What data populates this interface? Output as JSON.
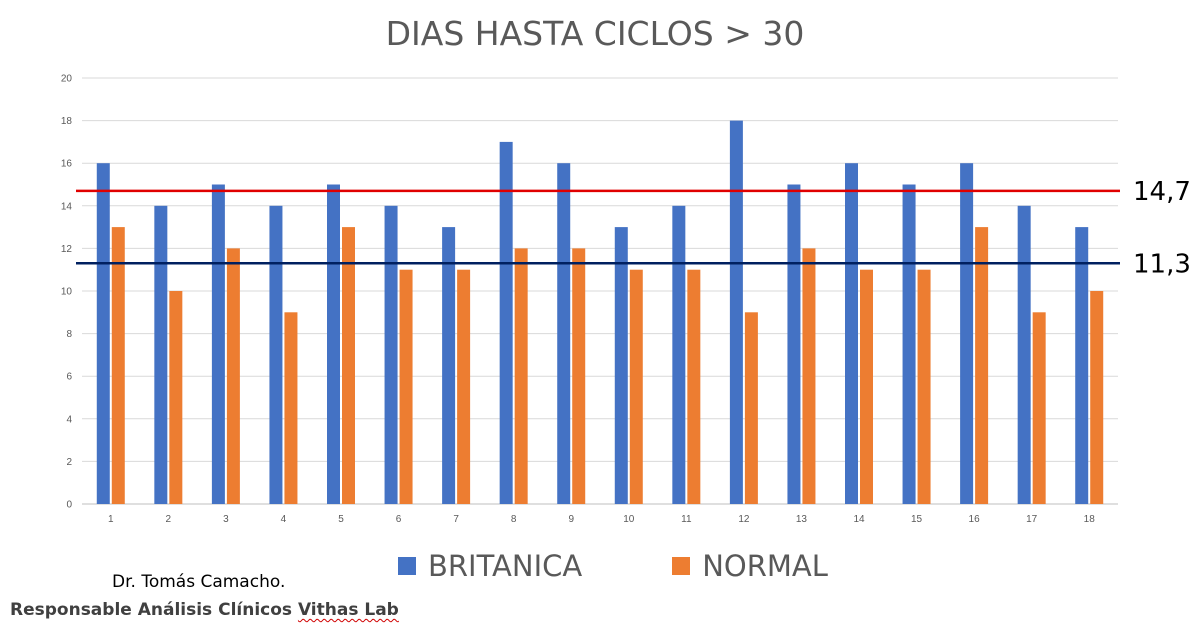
{
  "chart_data": {
    "type": "bar",
    "title": "DIAS HASTA CICLOS > 30",
    "categories": [
      "1",
      "2",
      "3",
      "4",
      "5",
      "6",
      "7",
      "8",
      "9",
      "10",
      "11",
      "12",
      "13",
      "14",
      "15",
      "16",
      "17",
      "18"
    ],
    "series": [
      {
        "name": "BRITANICA",
        "color": "#4472c4",
        "values": [
          16,
          14,
          15,
          14,
          15,
          14,
          13,
          17,
          16,
          13,
          14,
          18,
          15,
          16,
          15,
          16,
          14,
          13
        ]
      },
      {
        "name": "NORMAL",
        "color": "#ed7d31",
        "values": [
          13,
          10,
          12,
          9,
          13,
          11,
          11,
          12,
          12,
          11,
          11,
          9,
          12,
          11,
          11,
          13,
          9,
          10
        ]
      }
    ],
    "ylim": [
      0,
      20
    ],
    "yticks": [
      0,
      2,
      4,
      6,
      8,
      10,
      12,
      14,
      16,
      18,
      20
    ],
    "grid": true,
    "legend_position": "bottom",
    "reference_lines": [
      {
        "value": 14.7,
        "label": "14,7",
        "color": "#e00000"
      },
      {
        "value": 11.3,
        "label": "11,3",
        "color": "#002060"
      }
    ]
  },
  "footer": {
    "author": "Dr. Tomás Camacho.",
    "role_prefix": "Responsable Análisis Clínicos ",
    "role_suffix": "Vithas Lab"
  }
}
